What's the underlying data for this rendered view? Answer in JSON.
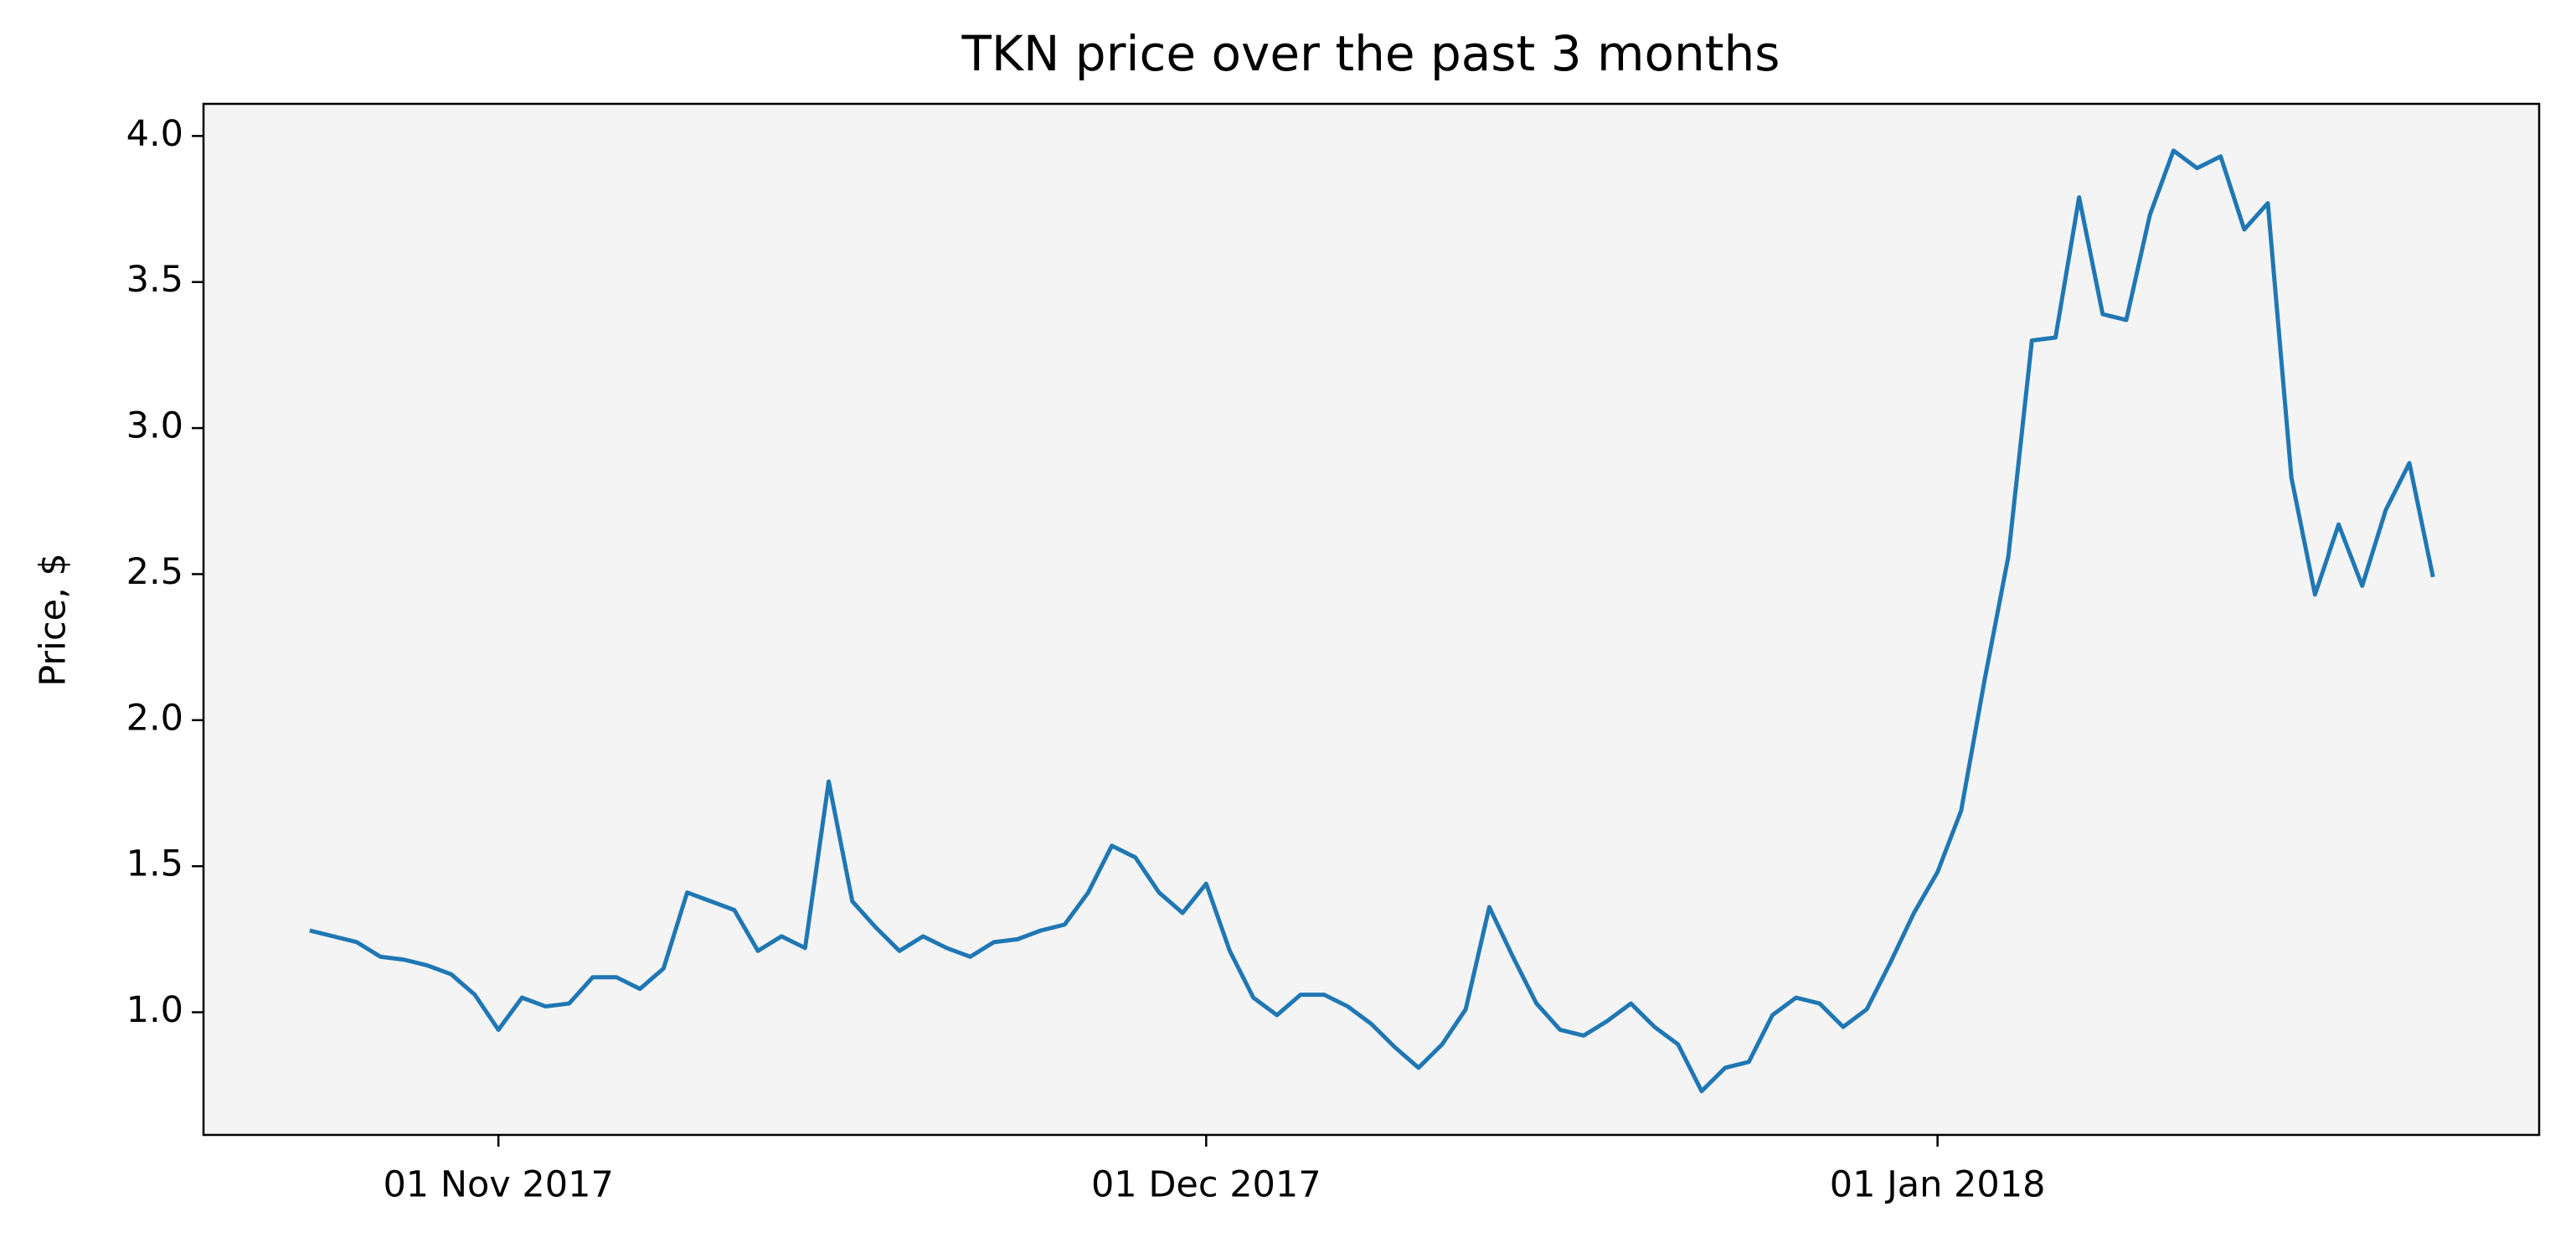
{
  "chart_data": {
    "type": "line",
    "title": "TKN price over the past 3 months",
    "ylabel": "Price, $",
    "color": "#1f77b4",
    "x": [
      "2017-10-24",
      "2017-10-25",
      "2017-10-26",
      "2017-10-27",
      "2017-10-28",
      "2017-10-29",
      "2017-10-30",
      "2017-10-31",
      "2017-11-01",
      "2017-11-02",
      "2017-11-03",
      "2017-11-04",
      "2017-11-05",
      "2017-11-06",
      "2017-11-07",
      "2017-11-08",
      "2017-11-09",
      "2017-11-10",
      "2017-11-11",
      "2017-11-12",
      "2017-11-13",
      "2017-11-14",
      "2017-11-15",
      "2017-11-16",
      "2017-11-17",
      "2017-11-18",
      "2017-11-19",
      "2017-11-20",
      "2017-11-21",
      "2017-11-22",
      "2017-11-23",
      "2017-11-24",
      "2017-11-25",
      "2017-11-26",
      "2017-11-27",
      "2017-11-28",
      "2017-11-29",
      "2017-11-30",
      "2017-12-01",
      "2017-12-02",
      "2017-12-03",
      "2017-12-04",
      "2017-12-05",
      "2017-12-06",
      "2017-12-07",
      "2017-12-08",
      "2017-12-09",
      "2017-12-10",
      "2017-12-11",
      "2017-12-12",
      "2017-12-13",
      "2017-12-14",
      "2017-12-15",
      "2017-12-16",
      "2017-12-17",
      "2017-12-18",
      "2017-12-19",
      "2017-12-20",
      "2017-12-21",
      "2017-12-22",
      "2017-12-23",
      "2017-12-24",
      "2017-12-25",
      "2017-12-26",
      "2017-12-27",
      "2017-12-28",
      "2017-12-29",
      "2017-12-30",
      "2017-12-31",
      "2018-01-01",
      "2018-01-02",
      "2018-01-03",
      "2018-01-04",
      "2018-01-05",
      "2018-01-06",
      "2018-01-07",
      "2018-01-08",
      "2018-01-09",
      "2018-01-10",
      "2018-01-11",
      "2018-01-12",
      "2018-01-13",
      "2018-01-14",
      "2018-01-15",
      "2018-01-16",
      "2018-01-17",
      "2018-01-18",
      "2018-01-19",
      "2018-01-20",
      "2018-01-21",
      "2018-01-22"
    ],
    "values": [
      1.28,
      1.26,
      1.24,
      1.19,
      1.18,
      1.16,
      1.13,
      1.06,
      0.94,
      1.05,
      1.02,
      1.03,
      1.12,
      1.12,
      1.08,
      1.15,
      1.41,
      1.38,
      1.35,
      1.21,
      1.26,
      1.22,
      1.79,
      1.38,
      1.29,
      1.21,
      1.26,
      1.22,
      1.19,
      1.24,
      1.25,
      1.28,
      1.3,
      1.41,
      1.57,
      1.53,
      1.41,
      1.34,
      1.44,
      1.21,
      1.05,
      0.99,
      1.06,
      1.06,
      1.02,
      0.96,
      0.88,
      0.81,
      0.89,
      1.01,
      1.36,
      1.19,
      1.03,
      0.94,
      0.92,
      0.97,
      1.03,
      0.95,
      0.89,
      0.73,
      0.81,
      0.83,
      0.99,
      1.05,
      1.03,
      0.95,
      1.01,
      1.17,
      1.34,
      1.48,
      1.69,
      2.14,
      2.56,
      3.3,
      3.31,
      3.79,
      3.39,
      3.37,
      3.73,
      3.95,
      3.89,
      3.93,
      3.68,
      3.77,
      2.83,
      2.43,
      2.67,
      2.46,
      2.72,
      2.88,
      2.49
    ],
    "xlim": [
      "2017-10-19T12:00",
      "2018-01-26T12:00"
    ],
    "xticks": [
      {
        "value": "2017-11-01",
        "label": "01 Nov 2017"
      },
      {
        "value": "2017-12-01",
        "label": "01 Dec 2017"
      },
      {
        "value": "2018-01-01",
        "label": "01 Jan 2018"
      }
    ],
    "ylim": [
      0.58,
      4.11
    ],
    "yticks": [
      {
        "value": 1,
        "label": "1.0"
      },
      1.5,
      {
        "value": 2,
        "label": "2.0"
      },
      2.5,
      {
        "value": 3,
        "label": "3.0"
      },
      3.5,
      {
        "value": 4,
        "label": "4.0"
      }
    ],
    "grid": false
  }
}
